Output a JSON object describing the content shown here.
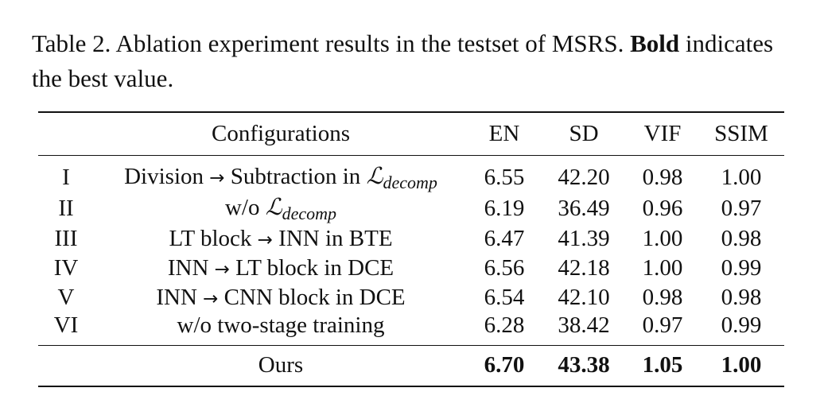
{
  "caption": {
    "text_before": "Table 2. Ablation experiment results in the testset of MSRS. ",
    "bold": "Bold",
    "text_after": " indicates the best value."
  },
  "table": {
    "headers": [
      "",
      "Configurations",
      "EN",
      "SD",
      "VIF",
      "SSIM"
    ],
    "rows": [
      {
        "id": "I",
        "config": {
          "pre": "Division ",
          "arrow": "→",
          "mid": " Subtraction in ",
          "math": "ℒ",
          "sub": "decomp",
          "post": ""
        },
        "values": [
          "6.55",
          "42.20",
          "0.98",
          "1.00"
        ]
      },
      {
        "id": "II",
        "config": {
          "pre": "w/o ",
          "arrow": "",
          "mid": "",
          "math": "ℒ",
          "sub": "decomp",
          "post": ""
        },
        "values": [
          "6.19",
          "36.49",
          "0.96",
          "0.97"
        ]
      },
      {
        "id": "III",
        "config": {
          "pre": "LT block ",
          "arrow": "→",
          "mid": " INN in BTE",
          "math": "",
          "sub": "",
          "post": ""
        },
        "values": [
          "6.47",
          "41.39",
          "1.00",
          "0.98"
        ]
      },
      {
        "id": "IV",
        "config": {
          "pre": "INN ",
          "arrow": "→",
          "mid": " LT block in DCE",
          "math": "",
          "sub": "",
          "post": ""
        },
        "values": [
          "6.56",
          "42.18",
          "1.00",
          "0.99"
        ]
      },
      {
        "id": "V",
        "config": {
          "pre": "INN ",
          "arrow": "→",
          "mid": " CNN block in DCE",
          "math": "",
          "sub": "",
          "post": ""
        },
        "values": [
          "6.54",
          "42.10",
          "0.98",
          "0.98"
        ]
      },
      {
        "id": "VI",
        "config": {
          "pre": "w/o two-stage training",
          "arrow": "",
          "mid": "",
          "math": "",
          "sub": "",
          "post": ""
        },
        "values": [
          "6.28",
          "38.42",
          "0.97",
          "0.99"
        ]
      }
    ],
    "ours": {
      "id": "",
      "config": "Ours",
      "values": [
        "6.70",
        "43.38",
        "1.05",
        "1.00"
      ]
    }
  }
}
